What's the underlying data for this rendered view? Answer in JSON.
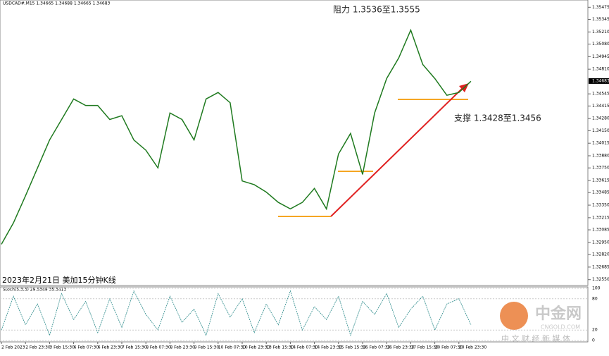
{
  "chart_data": {
    "type": "line",
    "symbol_info": "USDCAD#,M15 1.34665 1.34688 1.34665 1.34683",
    "caption": "2023年2月21日 美加15分钟K线",
    "annotations": [
      "阻力 1.3536至1.3555",
      "支撑 1.3428至1.3456"
    ],
    "categories": [
      "2 Feb 2023",
      null,
      "2 Feb 23:30",
      null,
      "3 Feb 15:30",
      null,
      "6 Feb 07:30",
      null,
      "6 Feb 23:30",
      null,
      "7 Feb 15:30",
      null,
      "8 Feb 07:30",
      null,
      "8 Feb 23:30",
      null,
      "9 Feb 15:30",
      null,
      "10 Feb 07:30",
      null,
      "10 Feb 23:30",
      null,
      "13 Feb 15:30",
      null,
      "14 Feb 07:30",
      null,
      "14 Feb 23:30",
      null,
      "15 Feb 15:30",
      null,
      "16 Feb 07:30",
      null,
      "16 Feb 23:30",
      null,
      "17 Feb 15:30",
      null,
      "20 Feb 07:30",
      null,
      "20 Feb 23:30",
      null
    ],
    "series": [
      {
        "name": "USDCAD#,M15",
        "color": "#1f7a1f",
        "values": [
          1.3293,
          1.3316,
          1.3345,
          1.3375,
          1.3405,
          1.3427,
          1.3449,
          1.3442,
          1.3442,
          1.3427,
          1.3431,
          1.3405,
          1.3394,
          1.3375,
          1.3434,
          1.3427,
          1.3405,
          1.3449,
          1.3456,
          1.3445,
          1.3361,
          1.3357,
          1.3349,
          1.3338,
          1.3331,
          1.3338,
          1.3353,
          1.3331,
          1.339,
          1.3412,
          1.3368,
          1.3434,
          1.3471,
          1.3493,
          1.3523,
          1.3486,
          1.3471,
          1.3453,
          1.3456,
          1.3468
        ]
      }
    ],
    "ylim": [
      1.3251,
      1.355
    ],
    "yticks": [
      1.35475,
      1.35345,
      {
        "value": 1.3521,
        "label": "1.35210"
      },
      {
        "value": 1.3508,
        "label": "1.35080"
      },
      1.34945,
      {
        "value": 1.3481,
        "label": "1.34810"
      },
      1.34545,
      1.34415,
      {
        "value": 1.3428,
        "label": "1.34280"
      },
      {
        "value": 1.3415,
        "label": "1.34150"
      },
      1.34015,
      {
        "value": 1.3388,
        "label": "1.33880"
      },
      {
        "value": 1.3375,
        "label": "1.33750"
      },
      1.33615,
      1.33485,
      {
        "value": 1.3335,
        "label": "1.33350"
      },
      1.33215,
      1.33085,
      {
        "value": 1.3295,
        "label": "1.32950"
      },
      {
        "value": 1.3282,
        "label": "1.32820"
      },
      1.32685,
      {
        "value": 1.3255,
        "label": "1.32550"
      }
    ],
    "current_price": 1.34683,
    "stoch": {
      "label": "Stoch(5,3,3) 29.5349 35.3413",
      "color": "#2a8a8a",
      "ylim": [
        0,
        100
      ],
      "yticks": [
        0,
        20,
        80,
        100
      ],
      "values": [
        20,
        85,
        30,
        70,
        10,
        90,
        40,
        75,
        15,
        80,
        25,
        95,
        50,
        20,
        85,
        35,
        60,
        10,
        90,
        45,
        80,
        15,
        70,
        30,
        95,
        20,
        65,
        40,
        85,
        10,
        75,
        50,
        90,
        25,
        60,
        85,
        20,
        70,
        80,
        30
      ]
    },
    "watermark": {
      "brand": "中金网",
      "site": "CNGOLD.COM",
      "slogan": "中 文 财 经 新 媒 体"
    }
  }
}
